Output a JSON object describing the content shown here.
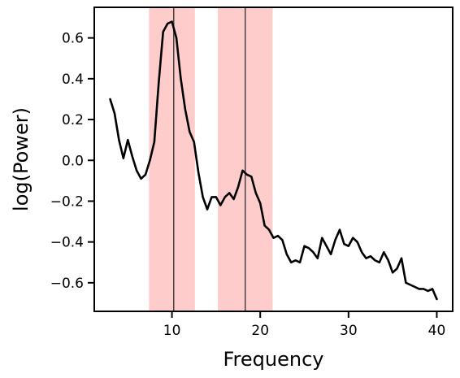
{
  "chart_data": {
    "type": "line",
    "title": "",
    "xlabel": "Frequency",
    "ylabel": "log(Power)",
    "xlim": [
      1.2,
      41.8
    ],
    "ylim": [
      -0.74,
      0.75
    ],
    "xticks": [
      10,
      20,
      30,
      40
    ],
    "yticks": [
      -0.6,
      -0.4,
      -0.2,
      0.0,
      0.2,
      0.4,
      0.6
    ],
    "ytick_labels": [
      "−0.6",
      "−0.4",
      "−0.2",
      "0.0",
      "0.2",
      "0.4",
      "0.6"
    ],
    "grid": false,
    "line_color": "#000000",
    "band_color": "#ffcccc",
    "peak_line_color": "#444444",
    "bands": [
      {
        "start": 7.4,
        "end": 12.6,
        "peak": 10.2
      },
      {
        "start": 15.2,
        "end": 21.4,
        "peak": 18.3
      }
    ],
    "series": [
      {
        "x": [
          3.0,
          3.5,
          4.0,
          4.5,
          5.0,
          5.5,
          6.0,
          6.5,
          7.0,
          7.5,
          8.0,
          8.5,
          9.0,
          9.5,
          10.0,
          10.5,
          11.0,
          11.5,
          12.0,
          12.5,
          13.0,
          13.5,
          14.0,
          14.5,
          15.0,
          15.5,
          16.0,
          16.5,
          17.0,
          17.5,
          18.0,
          18.5,
          19.0,
          19.5,
          20.0,
          20.5,
          21.0,
          21.5,
          22.0,
          22.5,
          23.0,
          23.5,
          24.0,
          24.5,
          25.0,
          25.5,
          26.0,
          26.5,
          27.0,
          27.5,
          28.0,
          28.5,
          29.0,
          29.5,
          30.0,
          30.5,
          31.0,
          31.5,
          32.0,
          32.5,
          33.0,
          33.5,
          34.0,
          34.5,
          35.0,
          35.5,
          36.0,
          36.5,
          37.0,
          37.5,
          38.0,
          38.5,
          39.0,
          39.5,
          40.0
        ],
        "values": [
          0.3,
          0.23,
          0.1,
          0.01,
          0.1,
          0.02,
          -0.05,
          -0.09,
          -0.07,
          0.0,
          0.09,
          0.38,
          0.63,
          0.67,
          0.68,
          0.6,
          0.4,
          0.25,
          0.14,
          0.09,
          -0.06,
          -0.18,
          -0.24,
          -0.18,
          -0.18,
          -0.22,
          -0.18,
          -0.16,
          -0.19,
          -0.13,
          -0.05,
          -0.07,
          -0.08,
          -0.16,
          -0.21,
          -0.32,
          -0.34,
          -0.38,
          -0.37,
          -0.39,
          -0.46,
          -0.5,
          -0.49,
          -0.5,
          -0.42,
          -0.43,
          -0.45,
          -0.48,
          -0.38,
          -0.42,
          -0.46,
          -0.39,
          -0.34,
          -0.41,
          -0.42,
          -0.38,
          -0.4,
          -0.45,
          -0.48,
          -0.47,
          -0.49,
          -0.5,
          -0.45,
          -0.49,
          -0.55,
          -0.53,
          -0.48,
          -0.6,
          -0.61,
          -0.62,
          -0.63,
          -0.63,
          -0.64,
          -0.63,
          -0.68
        ]
      }
    ]
  }
}
